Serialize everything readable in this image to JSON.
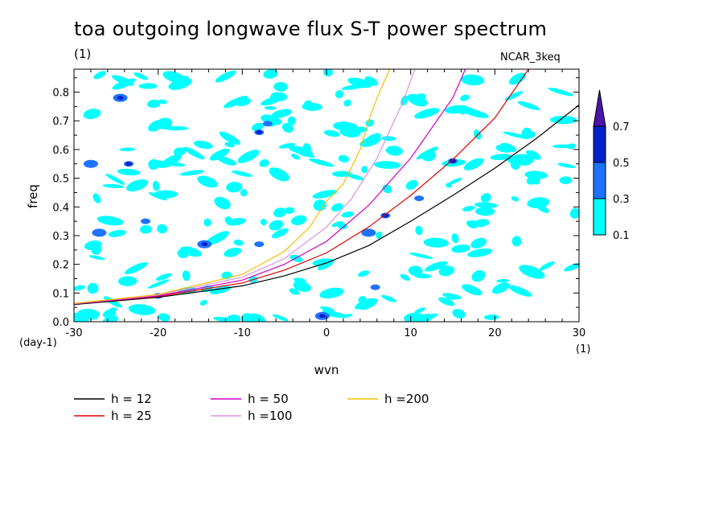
{
  "header": {
    "title": "toa outgoing longwave flux S-T power spectrum",
    "subtitle": "(1)",
    "model": "NCAR_3keq"
  },
  "colors": {
    "cyan": "#00ffff",
    "blue": "#1e73ff",
    "navy": "#0022c8",
    "purple": "#4b14aa",
    "h12": "#000000",
    "h25": "#e00000",
    "h50": "#d000c0",
    "h100": "#e090e0",
    "h200": "#f0c000"
  },
  "chart_data": {
    "type": "heatmap",
    "xlabel": "wvn",
    "ylabel": "freq",
    "x_unit_label": "(1)",
    "y_unit_label": "(day-1)",
    "xlim": [
      -30,
      30
    ],
    "ylim": [
      0,
      0.88
    ],
    "x_ticks": [
      -30,
      -20,
      -10,
      0,
      10,
      20,
      30
    ],
    "x_tick_labels": [
      "-30",
      "-20",
      "-10",
      "0",
      "10",
      "20",
      "30"
    ],
    "y_ticks": [
      0,
      0.1,
      0.2,
      0.3,
      0.4,
      0.5,
      0.6,
      0.7,
      0.8
    ],
    "y_tick_labels": [
      "0.0",
      "0.1",
      "0.2",
      "0.3",
      "0.4",
      "0.5",
      "0.6",
      "0.7",
      "0.8"
    ],
    "colorbar": {
      "levels": [
        "0.1",
        "0.3",
        "0.5",
        "0.7"
      ],
      "colors": [
        "#00ffff",
        "#1e73ff",
        "#0022c8",
        "#4b14aa"
      ]
    },
    "series": [
      {
        "name": "h = 12",
        "color": "#000000",
        "x": [
          -30,
          -20,
          -10,
          -5,
          0,
          5,
          10,
          15,
          20,
          25,
          30
        ],
        "values": [
          0.06,
          0.085,
          0.125,
          0.16,
          0.205,
          0.265,
          0.35,
          0.44,
          0.535,
          0.64,
          0.755
        ]
      },
      {
        "name": "h = 25",
        "color": "#e00000",
        "x": [
          -30,
          -20,
          -10,
          -5,
          0,
          5,
          10,
          15,
          20,
          24
        ],
        "values": [
          0.062,
          0.088,
          0.135,
          0.18,
          0.24,
          0.33,
          0.44,
          0.565,
          0.71,
          0.88
        ]
      },
      {
        "name": "h = 50",
        "color": "#d000c0",
        "x": [
          -30,
          -20,
          -10,
          -5,
          0,
          5,
          10,
          15,
          16.5
        ],
        "values": [
          0.062,
          0.09,
          0.145,
          0.2,
          0.28,
          0.405,
          0.57,
          0.78,
          0.88
        ]
      },
      {
        "name": "h =100",
        "color": "#e090e0",
        "x": [
          -30,
          -20,
          -10,
          -5,
          0,
          3,
          6,
          9,
          10.5
        ],
        "values": [
          0.063,
          0.093,
          0.155,
          0.22,
          0.33,
          0.43,
          0.57,
          0.76,
          0.88
        ]
      },
      {
        "name": "h =200",
        "color": "#f0c000",
        "x": [
          -30,
          -20,
          -10,
          -5,
          -2,
          0,
          2,
          4,
          5,
          6,
          7.5
        ],
        "values": [
          0.064,
          0.095,
          0.165,
          0.245,
          0.33,
          0.42,
          0.48,
          0.6,
          0.7,
          0.78,
          0.88
        ]
      }
    ],
    "legend": [
      {
        "label": "h = 12",
        "color": "#000000"
      },
      {
        "label": "h = 50",
        "color": "#d000c0"
      },
      {
        "label": "h =200",
        "color": "#f0c000"
      },
      {
        "label": "h = 25",
        "color": "#e00000"
      },
      {
        "label": "h =100",
        "color": "#e090e0"
      }
    ]
  }
}
